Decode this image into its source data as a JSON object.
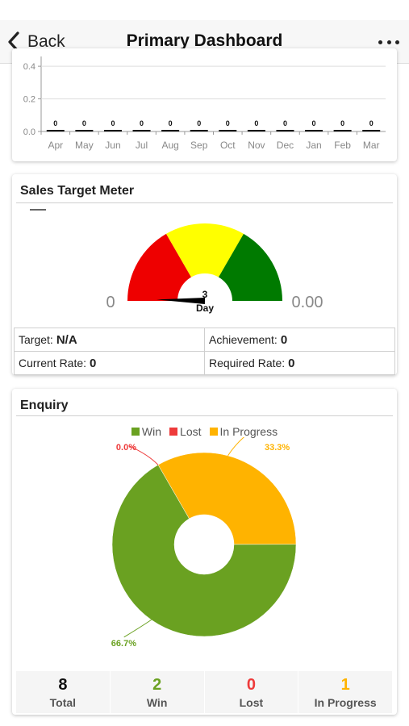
{
  "nav": {
    "back_label": "Back",
    "title": "Primary Dashboard",
    "more_icon": "more-horizontal-icon"
  },
  "bar_chart": {
    "chart_data": {
      "type": "bar",
      "categories": [
        "Apr",
        "May",
        "Jun",
        "Jul",
        "Aug",
        "Sep",
        "Oct",
        "Nov",
        "Dec",
        "Jan",
        "Feb",
        "Mar"
      ],
      "values": [
        0,
        0,
        0,
        0,
        0,
        0,
        0,
        0,
        0,
        0,
        0,
        0
      ],
      "data_labels": [
        "0",
        "0",
        "0",
        "0",
        "0",
        "0",
        "0",
        "0",
        "0",
        "0",
        "0",
        "0"
      ],
      "y_ticks": [
        "0.0",
        "0.2",
        "0.4"
      ],
      "grid": true
    }
  },
  "gauge": {
    "title": "Sales Target Meter",
    "min_label": "0",
    "max_label": "0.00",
    "center_value": "3",
    "center_unit": "Day",
    "needle_fraction": 0,
    "colors": {
      "low": "#ee0000",
      "mid": "#ffff00",
      "high": "#007a00"
    },
    "target_label": "Target:",
    "target_value": "N/A",
    "achievement_label": "Achievement:",
    "achievement_value": "0",
    "current_rate_label": "Current Rate:",
    "current_rate_value": "0",
    "required_rate_label": "Required Rate:",
    "required_rate_value": "0"
  },
  "enquiry": {
    "title": "Enquiry",
    "legend": [
      {
        "label": "Win",
        "color": "#6aa121"
      },
      {
        "label": "Lost",
        "color": "#ee3b3b"
      },
      {
        "label": "In Progress",
        "color": "#ffb300"
      }
    ],
    "chart_data": {
      "type": "pie",
      "categories": [
        "Win",
        "Lost",
        "In Progress"
      ],
      "values": [
        66.7,
        0.0,
        33.3
      ],
      "labels": [
        "66.7%",
        "0.0%",
        "33.3%"
      ]
    },
    "stats": [
      {
        "value": "8",
        "label": "Total",
        "color": "#111111"
      },
      {
        "value": "2",
        "label": "Win",
        "color": "#6aa121"
      },
      {
        "value": "0",
        "label": "Lost",
        "color": "#ee3b3b"
      },
      {
        "value": "1",
        "label": "In Progress",
        "color": "#ffb300"
      }
    ]
  }
}
